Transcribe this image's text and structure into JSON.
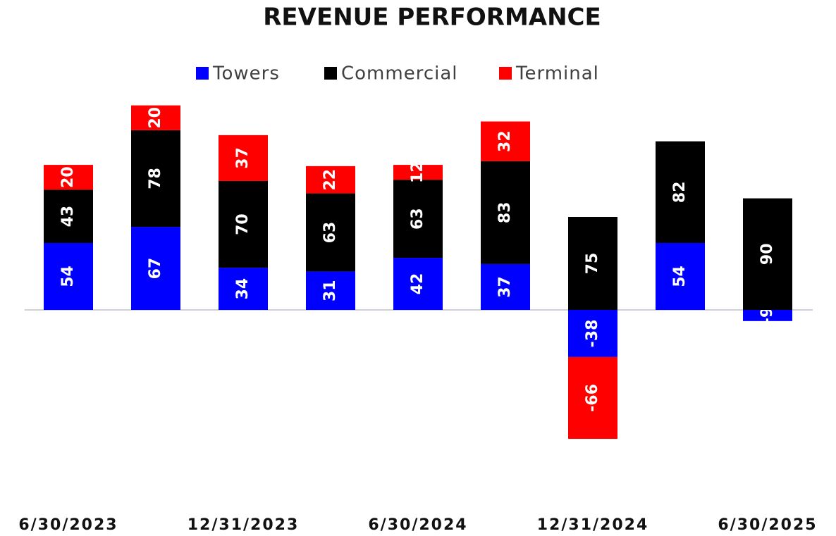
{
  "chart_data": {
    "type": "stacked_bar",
    "title": "REVENUE PERFORMANCE",
    "categories": [
      "6/30/2023",
      null,
      "12/31/2023",
      null,
      "6/30/2024",
      null,
      "12/31/2024",
      null,
      "6/30/2025"
    ],
    "series": [
      {
        "name": "Towers",
        "color": "#0000ff",
        "values": [
          54,
          67,
          34,
          31,
          42,
          37,
          -38,
          54,
          -9
        ]
      },
      {
        "name": "Commercial",
        "color": "#000000",
        "values": [
          43,
          78,
          70,
          63,
          63,
          83,
          75,
          82,
          90
        ]
      },
      {
        "name": "Terminal",
        "color": "#ff0000",
        "values": [
          20,
          20,
          37,
          22,
          12,
          32,
          -66,
          null,
          null
        ]
      }
    ],
    "ylim": [
      -110,
      170
    ],
    "legend": "top"
  }
}
